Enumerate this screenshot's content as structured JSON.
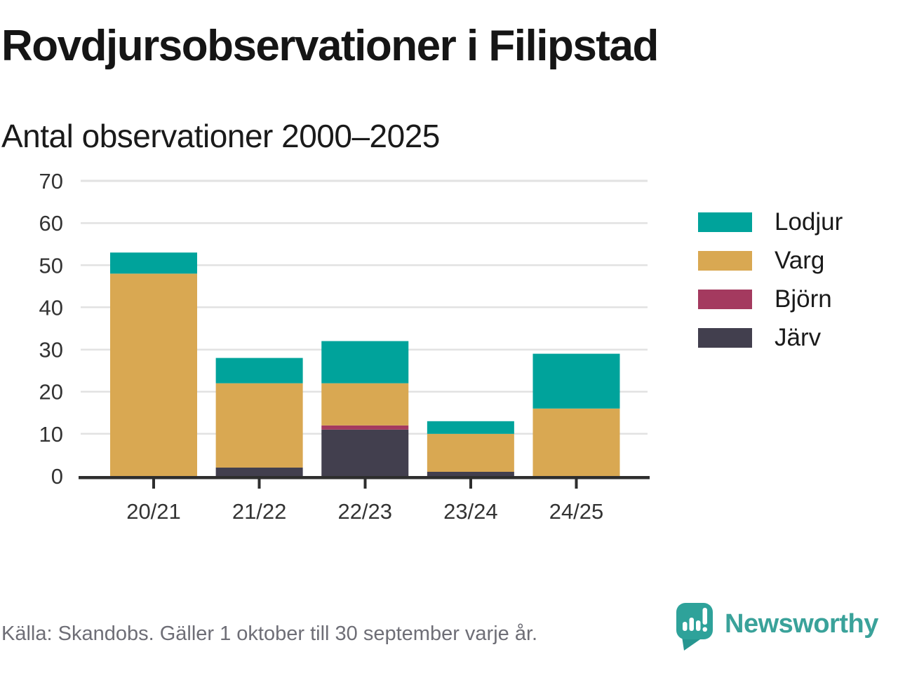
{
  "header": {
    "title": "Rovdjursobservationer i Filipstad",
    "subtitle": "Antal observationer 2000–2025"
  },
  "chart_data": {
    "type": "bar",
    "stacked": true,
    "title": "Rovdjursobservationer i Filipstad",
    "subtitle": "Antal observationer 2000–2025",
    "categories": [
      "20/21",
      "21/22",
      "22/23",
      "23/24",
      "24/25"
    ],
    "series": [
      {
        "name": "Järv",
        "color": "#423F4E",
        "values": [
          0,
          2,
          11,
          1,
          0
        ]
      },
      {
        "name": "Björn",
        "color": "#A43A5F",
        "values": [
          0,
          0,
          1,
          0,
          0
        ]
      },
      {
        "name": "Varg",
        "color": "#D9A852",
        "values": [
          48,
          20,
          10,
          9,
          16
        ]
      },
      {
        "name": "Lodjur",
        "color": "#00A39B",
        "values": [
          5,
          6,
          10,
          3,
          13
        ]
      }
    ],
    "totals": [
      53,
      28,
      32,
      13,
      29
    ],
    "xlabel": "",
    "ylabel": "",
    "ylim": [
      0,
      70
    ],
    "yticks": [
      0,
      10,
      20,
      30,
      40,
      50,
      60,
      70
    ],
    "grid": true,
    "legend_position": "right",
    "legend": [
      {
        "label": "Lodjur",
        "color": "#00A39B"
      },
      {
        "label": "Varg",
        "color": "#D9A852"
      },
      {
        "label": "Björn",
        "color": "#A43A5F"
      },
      {
        "label": "Järv",
        "color": "#423F4E"
      }
    ]
  },
  "footer": {
    "source": "Källa: Skandobs. Gäller 1 oktober till 30 september varje år.",
    "brand": "Newsworthy"
  },
  "colors": {
    "teal": "#00A39B",
    "gold": "#D9A852",
    "maroon": "#A43A5F",
    "dark_slate": "#423F4E",
    "gridline": "#E2E2E2",
    "axis": "#2E2E2E",
    "tick_label": "#333333",
    "text": "#1A1A1A",
    "muted_text": "#6E6E76",
    "brand_teal": "#2EA29A"
  }
}
